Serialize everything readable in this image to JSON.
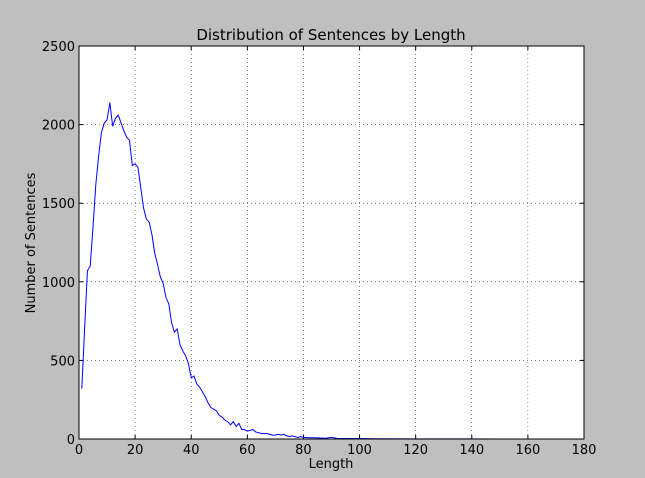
{
  "chart_data": {
    "type": "line",
    "title": "Distribution of Sentences by Length",
    "xlabel": "Length",
    "ylabel": "Number of Sentences",
    "xlim": [
      0,
      180
    ],
    "ylim": [
      0,
      2500
    ],
    "xticks": [
      "0",
      "20",
      "40",
      "60",
      "80",
      "100",
      "120",
      "140",
      "160",
      "180"
    ],
    "yticks": [
      "0",
      "500",
      "1000",
      "1500",
      "2000",
      "2500"
    ],
    "grid": true,
    "series": [
      {
        "color": "#0000ff",
        "x": [
          1,
          2,
          3,
          4,
          5,
          6,
          7,
          8,
          9,
          10,
          11,
          12,
          13,
          14,
          15,
          16,
          17,
          18,
          19,
          20,
          21,
          22,
          23,
          24,
          25,
          26,
          27,
          28,
          29,
          30,
          31,
          32,
          33,
          34,
          35,
          36,
          37,
          38,
          39,
          40,
          41,
          42,
          43,
          44,
          45,
          46,
          47,
          48,
          49,
          50,
          51,
          52,
          53,
          54,
          55,
          56,
          57,
          58,
          59,
          60,
          61,
          62,
          63,
          64,
          65,
          66,
          67,
          68,
          69,
          70,
          71,
          72,
          73,
          74,
          75,
          76,
          77,
          78,
          79,
          80,
          82,
          84,
          86,
          88,
          90,
          92,
          95,
          100,
          105,
          110,
          120,
          130,
          140,
          150,
          160,
          170,
          180
        ],
        "y": [
          320,
          700,
          1070,
          1100,
          1350,
          1620,
          1800,
          1950,
          2010,
          2030,
          2140,
          1990,
          2040,
          2060,
          2010,
          1960,
          1920,
          1900,
          1740,
          1750,
          1730,
          1600,
          1470,
          1400,
          1380,
          1300,
          1180,
          1110,
          1030,
          990,
          900,
          860,
          740,
          680,
          700,
          600,
          560,
          530,
          480,
          390,
          400,
          350,
          330,
          300,
          270,
          230,
          200,
          190,
          180,
          150,
          140,
          120,
          110,
          90,
          110,
          80,
          100,
          60,
          60,
          50,
          55,
          60,
          45,
          40,
          35,
          35,
          35,
          30,
          25,
          25,
          30,
          25,
          30,
          20,
          15,
          20,
          15,
          10,
          15,
          10,
          8,
          8,
          6,
          5,
          10,
          4,
          3,
          3,
          2,
          2,
          1,
          1,
          1,
          0,
          0,
          0,
          0
        ]
      }
    ]
  }
}
